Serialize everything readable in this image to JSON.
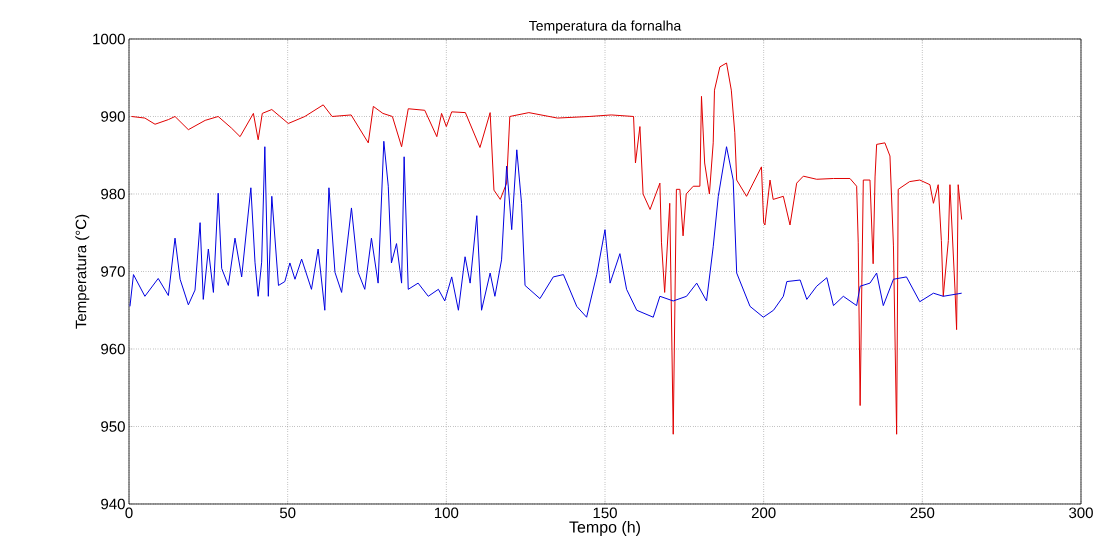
{
  "chart_data": {
    "type": "line",
    "title": "Temperatura da fornalha",
    "xlabel": "Tempo (h)",
    "ylabel": "Temperatura (°C)",
    "xlim": [
      0,
      300
    ],
    "xticks": [
      0,
      50,
      100,
      150,
      200,
      250,
      300
    ],
    "ylim": [
      940,
      1000
    ],
    "yticks": [
      940,
      950,
      960,
      970,
      980,
      990,
      1000
    ],
    "grid": true,
    "line_style": "solid",
    "series": [
      {
        "color": "#e00000",
        "x": [
          0.8,
          5,
          8.2,
          12.4,
          14.5,
          18.7,
          24,
          28.1,
          32.3,
          35,
          39.2,
          40.7,
          42,
          45,
          50.2,
          55.4,
          61.2,
          64,
          70,
          75.4,
          77,
          80,
          83,
          85.9,
          88,
          93.2,
          97,
          98.5,
          100,
          101.7,
          106,
          110.6,
          113.8,
          115,
          117,
          119,
          120,
          126,
          135,
          145,
          152,
          159,
          159.6,
          161,
          162,
          164.2,
          167.3,
          167.8,
          168.8,
          170.4,
          171.5,
          172.5,
          173.6,
          174.6,
          175.6,
          177.8,
          179.9,
          180.4,
          181.4,
          182.9,
          184.1,
          184.5,
          186.2,
          188.3,
          189.8,
          190.9,
          191.5,
          194.6,
          196.7,
          199.3,
          200,
          200.4,
          202,
          203,
          206.2,
          208.3,
          210.4,
          212.5,
          216.7,
          222,
          227.2,
          229.3,
          229.8,
          230.4,
          231.4,
          233.5,
          234.5,
          235.1,
          235.6,
          238.2,
          239.8,
          240.9,
          241.9,
          242.4,
          246,
          249.2,
          252.4,
          253.5,
          255,
          256,
          256.6,
          258.2,
          258.7,
          260.3,
          260.8,
          261.3,
          262.4
        ],
        "values": [
          990,
          989.8,
          989,
          989.6,
          990,
          988.3,
          989.5,
          990,
          988.5,
          987.4,
          990.4,
          987,
          990.4,
          990.9,
          989.1,
          990,
          991.5,
          990,
          990.2,
          986.6,
          991.3,
          990.4,
          990,
          986.1,
          991,
          990.8,
          987.4,
          990.4,
          988.7,
          990.6,
          990.5,
          986,
          990.5,
          980.5,
          979.3,
          981.4,
          990,
          990.5,
          989.8,
          990,
          990.2,
          990,
          984,
          988.7,
          980,
          978,
          981.4,
          973.7,
          967.3,
          978.8,
          949,
          980.6,
          980.6,
          974.6,
          980,
          981,
          981,
          992.6,
          984,
          980,
          986.6,
          993.4,
          996.4,
          996.9,
          993.4,
          987.9,
          981.8,
          979.7,
          981.4,
          983.5,
          976.3,
          976,
          981.8,
          979.3,
          979.7,
          976,
          981.4,
          982.3,
          981.9,
          982,
          982,
          981,
          973.7,
          952.7,
          981.8,
          981.8,
          971,
          982.2,
          986.4,
          986.6,
          984.9,
          973.3,
          949,
          980.6,
          981.6,
          981.8,
          981.2,
          978.8,
          981.2,
          974,
          966.8,
          974,
          981.2,
          967.6,
          962.5,
          981.2,
          976.7
        ]
      },
      {
        "color": "#0000e0",
        "x": [
          0.3,
          1.4,
          5,
          9.2,
          12.4,
          14.5,
          16.1,
          18.7,
          20.8,
          22.4,
          23.4,
          25,
          26.6,
          28.1,
          29.2,
          31.3,
          33.4,
          35.5,
          38.4,
          39.7,
          40.7,
          41.8,
          42.8,
          43.9,
          45,
          47.1,
          49.1,
          50.7,
          52.3,
          54.4,
          57.5,
          59.6,
          61.7,
          63,
          64.9,
          67,
          70.1,
          72.2,
          74.3,
          76.4,
          78.5,
          80.3,
          81.7,
          82.7,
          84.3,
          85.9,
          86.7,
          88,
          91.1,
          94.3,
          97.5,
          99.5,
          101.7,
          103.8,
          105.9,
          107.5,
          109.6,
          111.1,
          113.8,
          115.3,
          117.4,
          119,
          120.6,
          122.2,
          123.7,
          124.8,
          129.5,
          133.7,
          136.9,
          141.1,
          144.2,
          147.4,
          150,
          151.6,
          154.7,
          156.8,
          160,
          165.2,
          167.3,
          171.5,
          175.7,
          178.9,
          182,
          184.1,
          185.7,
          188.3,
          190.4,
          191.5,
          195.7,
          199.9,
          203.1,
          206.2,
          207.3,
          211.5,
          213.6,
          216.7,
          219.9,
          222,
          225.1,
          229.3,
          230.4,
          233.5,
          235.6,
          237.7,
          240.9,
          245,
          249.2,
          253.5,
          256.6,
          262.4
        ],
        "values": [
          965.5,
          969.6,
          966.8,
          969.1,
          966.9,
          974.3,
          969,
          965.7,
          967.6,
          976.3,
          966.4,
          972.9,
          967.3,
          980.1,
          970.4,
          968.2,
          974.3,
          969.3,
          980.8,
          971.2,
          966.8,
          971.2,
          986.1,
          966.8,
          979.7,
          968.2,
          968.7,
          971.1,
          969,
          971.6,
          967.7,
          972.9,
          965,
          980.8,
          969.9,
          967.3,
          978.2,
          969.9,
          967.7,
          974.3,
          968.5,
          986.8,
          981,
          971.1,
          973.6,
          968.5,
          984.8,
          967.7,
          968.5,
          966.8,
          967.7,
          966.2,
          969.3,
          965,
          971.9,
          968.5,
          977.2,
          965,
          969.8,
          966.8,
          971.5,
          983.6,
          975.4,
          985.7,
          978.8,
          968.2,
          966.5,
          969.3,
          969.6,
          965.5,
          964.1,
          969.6,
          975.4,
          968.5,
          972.3,
          967.7,
          965,
          964.1,
          966.8,
          966.2,
          966.8,
          968.5,
          966.2,
          973.2,
          979.7,
          986.1,
          981.8,
          969.8,
          965.5,
          964.1,
          965,
          966.8,
          968.7,
          968.9,
          966.4,
          968.1,
          969.2,
          965.6,
          966.8,
          965.6,
          968.1,
          968.5,
          969.8,
          965.6,
          969,
          969.3,
          966.1,
          967.2,
          966.8,
          967.2
        ]
      }
    ]
  }
}
